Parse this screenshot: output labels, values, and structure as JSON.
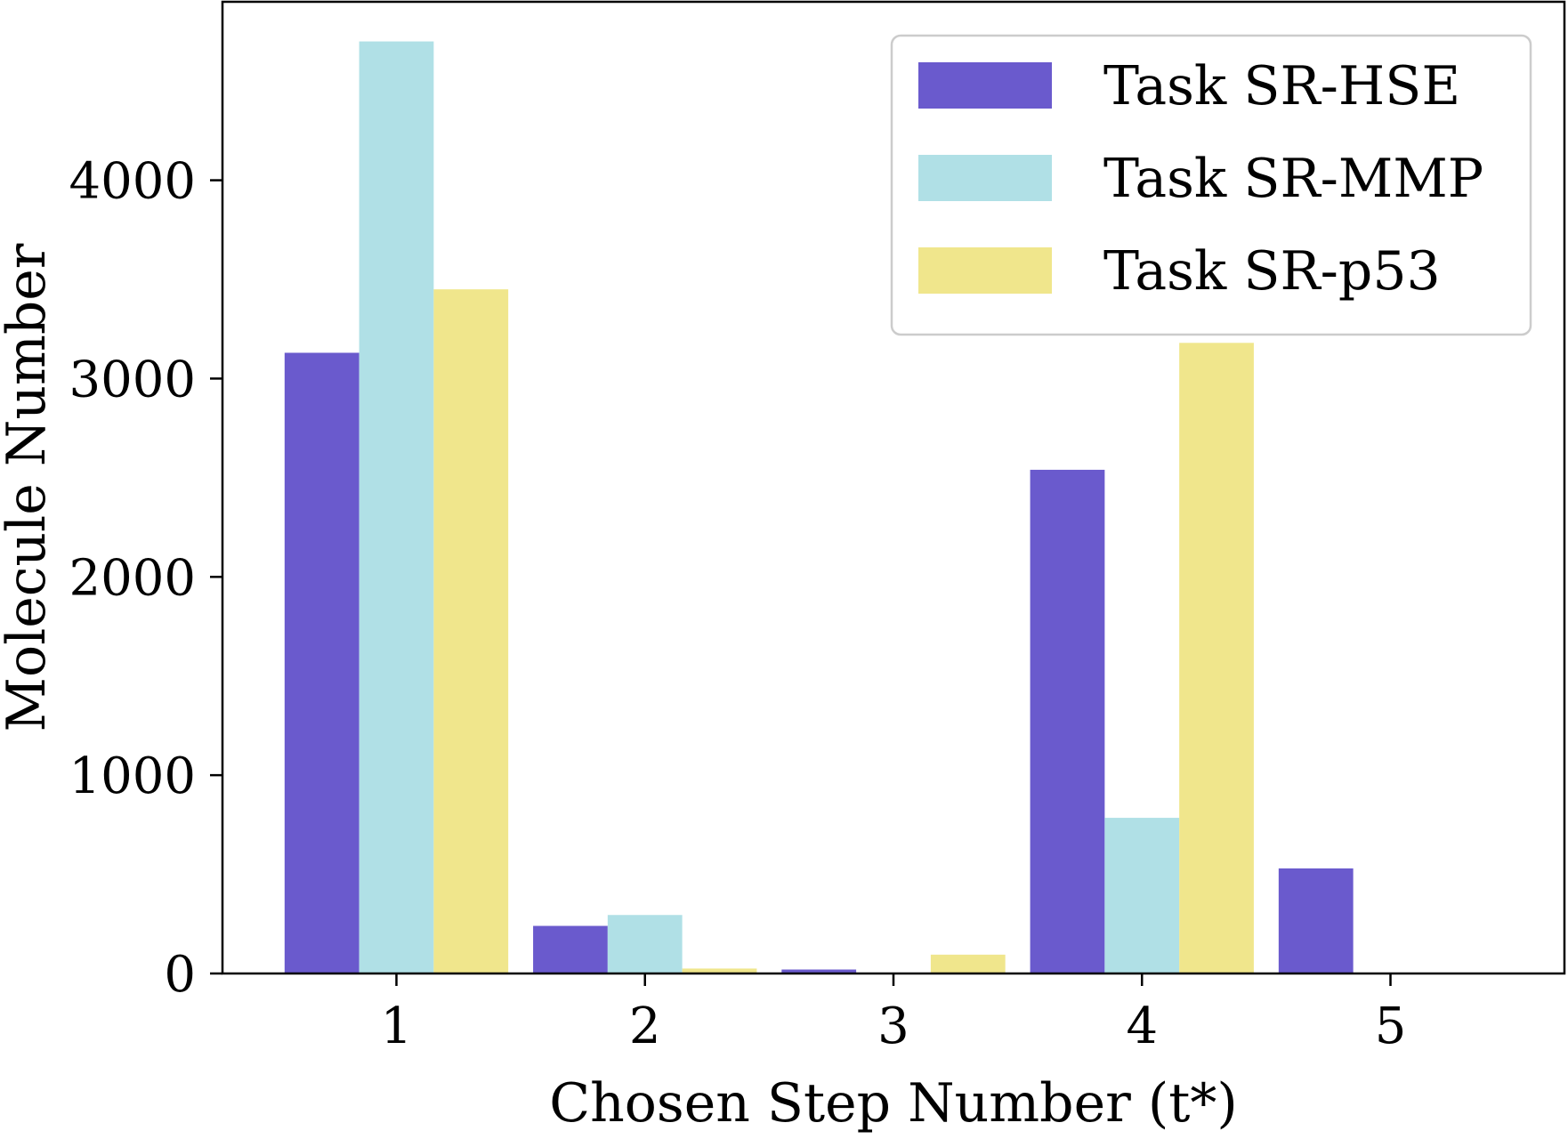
{
  "chart_data": {
    "type": "bar",
    "title": "",
    "xlabel": "Chosen Step Number (t*)",
    "ylabel": "Molecule Number",
    "categories": [
      "1",
      "2",
      "3",
      "4",
      "5"
    ],
    "yticks": [
      0,
      1000,
      2000,
      3000,
      4000
    ],
    "ylim": [
      0,
      4900
    ],
    "grid": false,
    "legend_position": "top-right",
    "series": [
      {
        "name": "Task SR-HSE",
        "color": "#6A5ACD",
        "values": [
          3130,
          240,
          20,
          2540,
          530
        ]
      },
      {
        "name": "Task SR-MMP",
        "color": "#B0E0E6",
        "values": [
          4700,
          295,
          0,
          785,
          0
        ]
      },
      {
        "name": "Task SR-p53",
        "color": "#F0E68C",
        "values": [
          3450,
          25,
          95,
          3180,
          0
        ]
      }
    ]
  }
}
